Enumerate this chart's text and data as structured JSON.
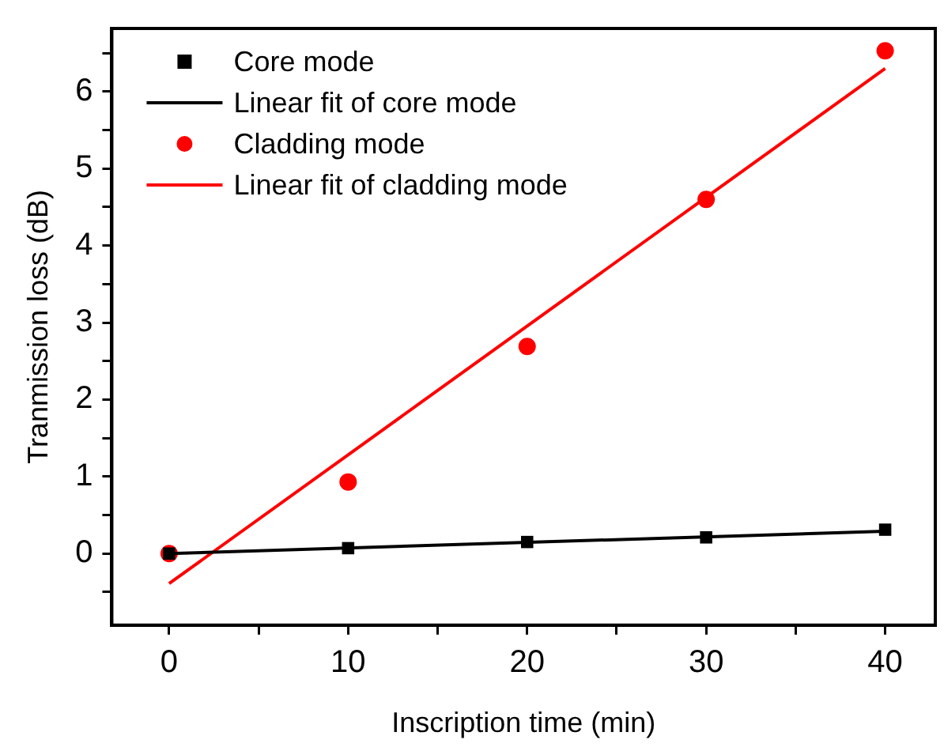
{
  "chart_data": {
    "type": "scatter",
    "xlabel": "Inscription time (min)",
    "ylabel": "Tranmission loss (dB)",
    "xlim": [
      -3.2,
      42.8
    ],
    "xticks": [
      0,
      {
        "value": 5,
        "label": null
      },
      10,
      {
        "value": 15,
        "label": null
      },
      20,
      {
        "value": 25,
        "label": null
      },
      30,
      {
        "value": 35,
        "label": null
      },
      40
    ],
    "ylim": [
      -0.93,
      6.82
    ],
    "yticks": [
      {
        "value": -0.5,
        "label": null
      },
      0,
      {
        "value": 0.5,
        "label": null
      },
      1,
      {
        "value": 1.5,
        "label": null
      },
      2,
      {
        "value": 2.5,
        "label": null
      },
      3,
      {
        "value": 3.5,
        "label": null
      },
      4,
      {
        "value": 4.5,
        "label": null
      },
      5,
      {
        "value": 5.5,
        "label": null
      },
      6,
      {
        "value": 6.5,
        "label": null
      }
    ],
    "grid": false,
    "legend": "top left",
    "series": [
      {
        "name": "Core mode",
        "type": "scatter",
        "marker": "square",
        "color": "#000000",
        "x": [
          0,
          10,
          20,
          30,
          40
        ],
        "values": [
          0,
          0.07,
          0.15,
          0.21,
          0.31
        ]
      },
      {
        "name": "Linear fit of core mode",
        "type": "line",
        "marker": "none",
        "color": "#000000",
        "x": [
          0,
          40
        ],
        "values": [
          0,
          0.29
        ]
      },
      {
        "name": "Cladding mode",
        "type": "scatter",
        "marker": "circle",
        "color": "#ff0000",
        "x": [
          0,
          10,
          20,
          30,
          40
        ],
        "values": [
          0,
          0.93,
          2.69,
          4.6,
          6.53
        ]
      },
      {
        "name": "Linear fit of cladding mode",
        "type": "line",
        "marker": "none",
        "color": "#ff0000",
        "x": [
          0,
          40
        ],
        "values": [
          -0.39,
          6.3
        ]
      }
    ]
  }
}
